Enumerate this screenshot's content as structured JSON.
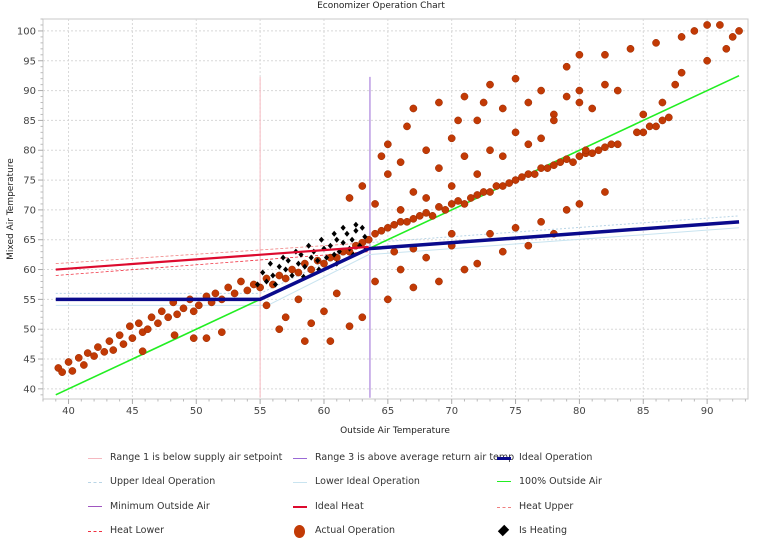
{
  "chart_data": {
    "type": "scatter",
    "title": "Economizer Operation Chart",
    "xlabel": "Outside Air Temperature",
    "ylabel": "Mixed Air Temperature",
    "xlim": [
      38,
      93.2
    ],
    "ylim": [
      38.3,
      102
    ],
    "xticks": [
      40,
      45,
      50,
      55,
      60,
      65,
      70,
      75,
      80,
      85,
      90
    ],
    "yticks": [
      40,
      45,
      50,
      55,
      60,
      65,
      70,
      75,
      80,
      85,
      90,
      95,
      100
    ],
    "grid": true,
    "legend_position": "bottom",
    "series": [
      {
        "name": "Range 1 is below supply air setpoint",
        "kind": "line",
        "color": "#f5b8c0",
        "width": 1,
        "dash": "",
        "points": [
          [
            55,
            38.5
          ],
          [
            55,
            92.3
          ]
        ]
      },
      {
        "name": "Range 3 is above average return air temp",
        "kind": "line",
        "color": "#9a6ad6",
        "width": 1,
        "dash": "",
        "points": [
          [
            63.6,
            38.5
          ],
          [
            63.6,
            92.3
          ]
        ]
      },
      {
        "name": "Ideal Operation",
        "kind": "line",
        "color": "#0a0a8c",
        "width": 3.5,
        "dash": "",
        "points": [
          [
            39,
            55
          ],
          [
            55,
            55
          ],
          [
            63.5,
            63.5
          ],
          [
            92.5,
            68
          ]
        ]
      },
      {
        "name": "Upper Ideal Operation",
        "kind": "line",
        "color": "#b9d5e6",
        "width": 1,
        "dash": "2,2",
        "points": [
          [
            39,
            56
          ],
          [
            55,
            56
          ],
          [
            63.5,
            64.5
          ],
          [
            92.5,
            69
          ]
        ]
      },
      {
        "name": "Lower Ideal Operation",
        "kind": "line",
        "color": "#c9e4f0",
        "width": 1,
        "dash": "",
        "points": [
          [
            39,
            54
          ],
          [
            55.6,
            54
          ],
          [
            63.5,
            62.5
          ],
          [
            92.5,
            67
          ]
        ]
      },
      {
        "name": "100% Outside Air",
        "kind": "line",
        "color": "#22ee22",
        "width": 1.6,
        "dash": "",
        "points": [
          [
            39,
            39
          ],
          [
            92.5,
            92.5
          ]
        ]
      },
      {
        "name": "Minimum Outside Air",
        "kind": "line",
        "color": "#a056c0",
        "width": 1.5,
        "dash": "",
        "points": []
      },
      {
        "name": "Ideal Heat",
        "kind": "line",
        "color": "#dd0a2e",
        "width": 2.2,
        "dash": "",
        "points": [
          [
            39,
            60
          ],
          [
            63.5,
            63.8
          ]
        ]
      },
      {
        "name": "Heat Upper",
        "kind": "line",
        "color": "#f08080",
        "width": 0.8,
        "dash": "3,2",
        "points": [
          [
            39,
            61
          ],
          [
            63.5,
            64.5
          ]
        ]
      },
      {
        "name": "Heat Lower",
        "kind": "line",
        "color": "#f03040",
        "width": 0.8,
        "dash": "3,2",
        "points": [
          [
            39,
            59
          ],
          [
            63.5,
            63
          ]
        ]
      },
      {
        "name": "Actual Operation",
        "kind": "circle",
        "color": "#c23a05",
        "points": [
          [
            39.2,
            43.5
          ],
          [
            39.5,
            42.8
          ],
          [
            40,
            44.5
          ],
          [
            40.3,
            43
          ],
          [
            40.8,
            45.2
          ],
          [
            41.2,
            44
          ],
          [
            41.5,
            46
          ],
          [
            42,
            45.5
          ],
          [
            42.3,
            47
          ],
          [
            42.8,
            46.2
          ],
          [
            43.2,
            48
          ],
          [
            43.5,
            46.5
          ],
          [
            44,
            49
          ],
          [
            44.3,
            47.5
          ],
          [
            44.8,
            50.5
          ],
          [
            45,
            48.5
          ],
          [
            45.5,
            51
          ],
          [
            45.8,
            49.5
          ],
          [
            46.2,
            50
          ],
          [
            46.5,
            52
          ],
          [
            47,
            51
          ],
          [
            47.3,
            53
          ],
          [
            47.8,
            52
          ],
          [
            48.2,
            54.5
          ],
          [
            48.5,
            52.5
          ],
          [
            49,
            53.5
          ],
          [
            49.5,
            55
          ],
          [
            49.8,
            53
          ],
          [
            50.2,
            54
          ],
          [
            50.8,
            55.5
          ],
          [
            51.2,
            54.5
          ],
          [
            51.5,
            56
          ],
          [
            52,
            55
          ],
          [
            52.5,
            57
          ],
          [
            53,
            56
          ],
          [
            53.5,
            58
          ],
          [
            54,
            56.5
          ],
          [
            54.5,
            57.5
          ],
          [
            55,
            57
          ],
          [
            55.5,
            58.5
          ],
          [
            56,
            57.5
          ],
          [
            56.5,
            59
          ],
          [
            57,
            58.5
          ],
          [
            57.5,
            60
          ],
          [
            58,
            59.5
          ],
          [
            58.5,
            61
          ],
          [
            59,
            60
          ],
          [
            59.5,
            61.5
          ],
          [
            60,
            61
          ],
          [
            60.5,
            62
          ],
          [
            61,
            62
          ],
          [
            61.5,
            63
          ],
          [
            62,
            63
          ],
          [
            62.5,
            64
          ],
          [
            63,
            64.5
          ],
          [
            63.5,
            65
          ],
          [
            64,
            66
          ],
          [
            64.5,
            66.5
          ],
          [
            65,
            67
          ],
          [
            65.5,
            67.5
          ],
          [
            66,
            68
          ],
          [
            66.5,
            68
          ],
          [
            67,
            68.5
          ],
          [
            67.5,
            69
          ],
          [
            68,
            69.5
          ],
          [
            68.5,
            69
          ],
          [
            69,
            70.5
          ],
          [
            69.5,
            70
          ],
          [
            70,
            71
          ],
          [
            70.5,
            71.5
          ],
          [
            71,
            71
          ],
          [
            71.5,
            72
          ],
          [
            72,
            72.5
          ],
          [
            72.5,
            73
          ],
          [
            73,
            73
          ],
          [
            73.5,
            74
          ],
          [
            74,
            74
          ],
          [
            74.5,
            74.5
          ],
          [
            75,
            75
          ],
          [
            75.5,
            75.5
          ],
          [
            76,
            76
          ],
          [
            76.5,
            76
          ],
          [
            77,
            77
          ],
          [
            77.5,
            77
          ],
          [
            78,
            77.5
          ],
          [
            78.5,
            78
          ],
          [
            79,
            78.5
          ],
          [
            79.5,
            78
          ],
          [
            80,
            79
          ],
          [
            80.5,
            79.5
          ],
          [
            81,
            79.5
          ],
          [
            81.5,
            80
          ],
          [
            82,
            80.5
          ],
          [
            82.5,
            81
          ],
          [
            83,
            81
          ],
          [
            85,
            83
          ],
          [
            85.5,
            84
          ],
          [
            86,
            84
          ],
          [
            86.5,
            85
          ],
          [
            87,
            85.5
          ],
          [
            48.3,
            49
          ],
          [
            49.8,
            48.5
          ],
          [
            50.8,
            48.5
          ],
          [
            52,
            49.5
          ],
          [
            45.8,
            46.3
          ],
          [
            55.5,
            54
          ],
          [
            57,
            52
          ],
          [
            58,
            55
          ],
          [
            59,
            51
          ],
          [
            60,
            53
          ],
          [
            61,
            56
          ],
          [
            62,
            50.5
          ],
          [
            63,
            52
          ],
          [
            64,
            58
          ],
          [
            65,
            55
          ],
          [
            66,
            60
          ],
          [
            67,
            57
          ],
          [
            68,
            62
          ],
          [
            69,
            58
          ],
          [
            70,
            64
          ],
          [
            71,
            60
          ],
          [
            72,
            61
          ],
          [
            73,
            66
          ],
          [
            74,
            63
          ],
          [
            75,
            67
          ],
          [
            76,
            64
          ],
          [
            77,
            68
          ],
          [
            78,
            66
          ],
          [
            79,
            70
          ],
          [
            80,
            71
          ],
          [
            82,
            73
          ],
          [
            60.5,
            48
          ],
          [
            58.5,
            48
          ],
          [
            56.5,
            50
          ],
          [
            65.5,
            63
          ],
          [
            67,
            63.5
          ],
          [
            70,
            66
          ],
          [
            62,
            72
          ],
          [
            63,
            74
          ],
          [
            64,
            71
          ],
          [
            65,
            76
          ],
          [
            66,
            78
          ],
          [
            67,
            73
          ],
          [
            68,
            80
          ],
          [
            69,
            77
          ],
          [
            70,
            82
          ],
          [
            71,
            79
          ],
          [
            72,
            85
          ],
          [
            73,
            80
          ],
          [
            74,
            87
          ],
          [
            75,
            83
          ],
          [
            76,
            88
          ],
          [
            77,
            82
          ],
          [
            78,
            86
          ],
          [
            79,
            89
          ],
          [
            80,
            90
          ],
          [
            81,
            87
          ],
          [
            82,
            91
          ],
          [
            83,
            90
          ],
          [
            78,
            85
          ],
          [
            80,
            88
          ],
          [
            76,
            81
          ],
          [
            74,
            79
          ],
          [
            72,
            76
          ],
          [
            70,
            74
          ],
          [
            68,
            72
          ],
          [
            66,
            70
          ],
          [
            67,
            87
          ],
          [
            69,
            88
          ],
          [
            71,
            89
          ],
          [
            73,
            91
          ],
          [
            75,
            92
          ],
          [
            77,
            90
          ],
          [
            79,
            94
          ],
          [
            80,
            96
          ],
          [
            82,
            96
          ],
          [
            84,
            97
          ],
          [
            86,
            98
          ],
          [
            88,
            99
          ],
          [
            89,
            100
          ],
          [
            90,
            101
          ],
          [
            91,
            101
          ],
          [
            92,
            99
          ],
          [
            92.5,
            100
          ],
          [
            90,
            95
          ],
          [
            91.5,
            97
          ],
          [
            88,
            93
          ],
          [
            87.5,
            91
          ],
          [
            85,
            86
          ],
          [
            84.5,
            83
          ],
          [
            86.5,
            88
          ],
          [
            80.5,
            80
          ],
          [
            72.5,
            88
          ],
          [
            70.5,
            85
          ],
          [
            65,
            81
          ],
          [
            64.5,
            79
          ],
          [
            66.5,
            84
          ]
        ]
      },
      {
        "name": "Is Heating",
        "kind": "diamond",
        "color": "#000000",
        "points": [
          [
            55.5,
            58
          ],
          [
            56,
            59
          ],
          [
            56.5,
            60.5
          ],
          [
            57,
            60
          ],
          [
            57.2,
            61.5
          ],
          [
            57.5,
            59
          ],
          [
            58,
            61
          ],
          [
            58.2,
            62.5
          ],
          [
            58.5,
            60.5
          ],
          [
            59,
            62
          ],
          [
            59.2,
            63
          ],
          [
            59.5,
            61.5
          ],
          [
            60,
            63.5
          ],
          [
            60.2,
            62
          ],
          [
            60.5,
            64
          ],
          [
            60.8,
            62.5
          ],
          [
            61,
            65
          ],
          [
            61.2,
            63
          ],
          [
            61.5,
            64.5
          ],
          [
            61.8,
            66
          ],
          [
            62,
            63.5
          ],
          [
            62.2,
            65
          ],
          [
            62.5,
            66.5
          ],
          [
            62.8,
            64
          ],
          [
            63,
            67
          ],
          [
            63.2,
            65.5
          ],
          [
            56.8,
            62
          ],
          [
            57.8,
            63
          ],
          [
            58.8,
            64
          ],
          [
            59.8,
            65
          ],
          [
            60.8,
            66
          ],
          [
            61.5,
            67
          ],
          [
            62.5,
            67.5
          ],
          [
            55.2,
            59.5
          ],
          [
            54.8,
            57.5
          ],
          [
            55.8,
            61
          ],
          [
            56.2,
            57.5
          ],
          [
            58.4,
            58.8
          ],
          [
            59.6,
            60
          ],
          [
            61,
            61
          ],
          [
            62.3,
            62.5
          ],
          [
            63.3,
            63.5
          ]
        ]
      }
    ]
  }
}
